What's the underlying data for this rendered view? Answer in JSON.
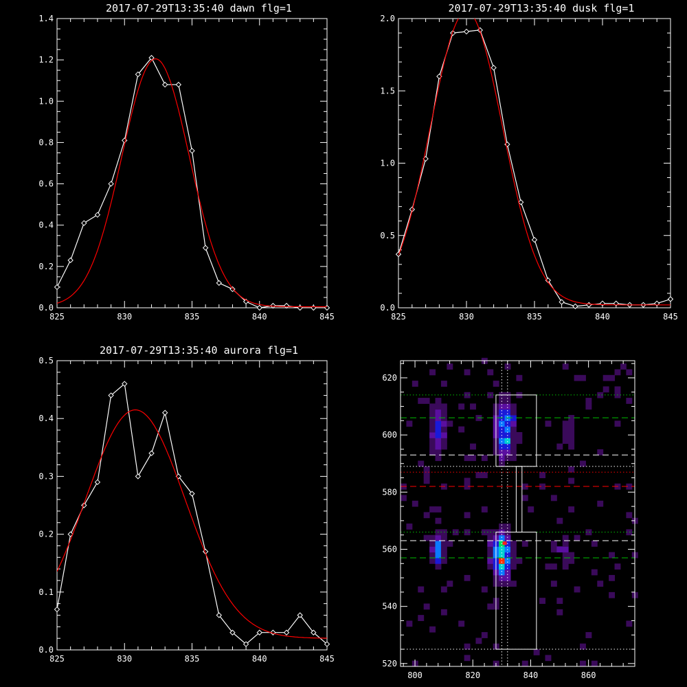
{
  "chart_data": [
    {
      "type": "line",
      "title": "2017-07-29T13:35:40 dawn flg=1",
      "xlim": [
        825,
        845
      ],
      "ylim": [
        0,
        1.4
      ],
      "xticks": [
        "825",
        "830",
        "835",
        "840",
        "845"
      ],
      "yticks": [
        "0.0",
        "0.2",
        "0.4",
        "0.6",
        "0.8",
        "1.0",
        "1.2",
        "1.4"
      ],
      "series": [
        {
          "role": "data",
          "color": "#ffffff",
          "x": [
            825,
            826,
            827,
            828,
            829,
            830,
            831,
            832,
            833,
            834,
            835,
            836,
            837,
            838,
            839,
            840,
            841,
            842,
            843,
            844,
            845
          ],
          "y": [
            0.1,
            0.23,
            0.41,
            0.45,
            0.6,
            0.81,
            1.13,
            1.21,
            1.08,
            1.08,
            0.76,
            0.29,
            0.12,
            0.09,
            0.03,
            0.0,
            0.01,
            0.01,
            0.0,
            0.0,
            0.0
          ]
        },
        {
          "role": "fit",
          "color": "#ff0000",
          "gauss": {
            "amp": 1.2,
            "mu": 832.3,
            "sigma": 2.5,
            "base": 0.005
          }
        }
      ]
    },
    {
      "type": "line",
      "title": "2017-07-29T13:35:40 dusk flg=1",
      "xlim": [
        825,
        845
      ],
      "ylim": [
        0,
        2.0
      ],
      "xticks": [
        "825",
        "830",
        "835",
        "840",
        "845"
      ],
      "yticks": [
        "0.0",
        "0.5",
        "1.0",
        "1.5",
        "2.0"
      ],
      "series": [
        {
          "role": "data",
          "color": "#ffffff",
          "x": [
            825,
            826,
            827,
            828,
            829,
            830,
            831,
            832,
            833,
            834,
            835,
            836,
            837,
            838,
            839,
            840,
            841,
            842,
            843,
            844,
            845
          ],
          "y": [
            0.37,
            0.68,
            1.03,
            1.6,
            1.9,
            1.91,
            1.92,
            1.66,
            1.13,
            0.73,
            0.47,
            0.19,
            0.04,
            0.01,
            0.02,
            0.03,
            0.03,
            0.02,
            0.02,
            0.03,
            0.06
          ]
        },
        {
          "role": "fit",
          "color": "#ff0000",
          "gauss": {
            "amp": 2.03,
            "mu": 830.0,
            "sigma": 2.65,
            "base": 0.02
          }
        }
      ]
    },
    {
      "type": "line",
      "title": "2017-07-29T13:35:40 aurora flg=1",
      "xlim": [
        825,
        845
      ],
      "ylim": [
        0,
        0.5
      ],
      "xticks": [
        "825",
        "830",
        "835",
        "840",
        "845"
      ],
      "yticks": [
        "0.0",
        "0.1",
        "0.2",
        "0.3",
        "0.4",
        "0.5"
      ],
      "series": [
        {
          "role": "data",
          "color": "#ffffff",
          "x": [
            825,
            826,
            827,
            828,
            829,
            830,
            831,
            832,
            833,
            834,
            835,
            836,
            837,
            838,
            839,
            840,
            841,
            842,
            843,
            844,
            845
          ],
          "y": [
            0.07,
            0.2,
            0.25,
            0.29,
            0.44,
            0.46,
            0.3,
            0.34,
            0.41,
            0.3,
            0.27,
            0.17,
            0.06,
            0.03,
            0.01,
            0.03,
            0.03,
            0.03,
            0.06,
            0.03,
            0.01
          ]
        },
        {
          "role": "fit",
          "color": "#ff0000",
          "gauss": {
            "amp": 0.395,
            "mu": 830.8,
            "sigma": 3.7,
            "base": 0.02
          }
        }
      ]
    },
    {
      "type": "heatmap",
      "title": "",
      "xlim": [
        795,
        876
      ],
      "ylim": [
        519,
        626
      ],
      "xticks": [
        "800",
        "820",
        "840",
        "860"
      ],
      "yticks": [
        "520",
        "540",
        "560",
        "580",
        "600",
        "620"
      ],
      "blobs": [
        {
          "cx": 831,
          "cy": 602,
          "sx": 2.3,
          "sy": 7,
          "amp": 0.65
        },
        {
          "cx": 808,
          "cy": 602,
          "sx": 1.8,
          "sy": 7,
          "amp": 0.45
        },
        {
          "cx": 853,
          "cy": 600,
          "sx": 2.0,
          "sy": 6,
          "amp": 0.2
        },
        {
          "cx": 830,
          "cy": 558,
          "sx": 2.2,
          "sy": 6,
          "amp": 0.9
        },
        {
          "cx": 808,
          "cy": 560,
          "sx": 1.6,
          "sy": 4,
          "amp": 0.55
        },
        {
          "cx": 852,
          "cy": 557,
          "sx": 2.0,
          "sy": 5,
          "amp": 0.22
        }
      ],
      "hot_spot": {
        "x": 831,
        "y": 562
      },
      "hlines": [
        {
          "y": 614,
          "color": "#00c000",
          "style": "dotted"
        },
        {
          "y": 606,
          "color": "#00c000",
          "style": "dashed"
        },
        {
          "y": 593,
          "color": "#ffffff",
          "style": "dashed"
        },
        {
          "y": 589,
          "color": "#ffffff",
          "style": "dotted"
        },
        {
          "y": 587,
          "color": "#ff0000",
          "style": "dotted"
        },
        {
          "y": 582,
          "color": "#ff0000",
          "style": "dashed"
        },
        {
          "y": 566,
          "color": "#00c000",
          "style": "dotted"
        },
        {
          "y": 563,
          "color": "#ffffff",
          "style": "dashed"
        },
        {
          "y": 557,
          "color": "#00c000",
          "style": "dashed"
        },
        {
          "y": 525,
          "color": "#ffffff",
          "style": "dotted"
        }
      ],
      "vlines": [
        {
          "x": 830,
          "color": "#ffffff",
          "style": "dotted"
        },
        {
          "x": 832,
          "color": "#ffffff",
          "style": "dotted"
        }
      ],
      "boxes": [
        {
          "x0": 828,
          "x1": 842,
          "y0": 589,
          "y1": 614
        },
        {
          "x0": 835,
          "x1": 837,
          "y0": 566,
          "y1": 589
        },
        {
          "x0": 828,
          "x1": 842,
          "y0": 525,
          "y1": 566
        }
      ]
    }
  ]
}
